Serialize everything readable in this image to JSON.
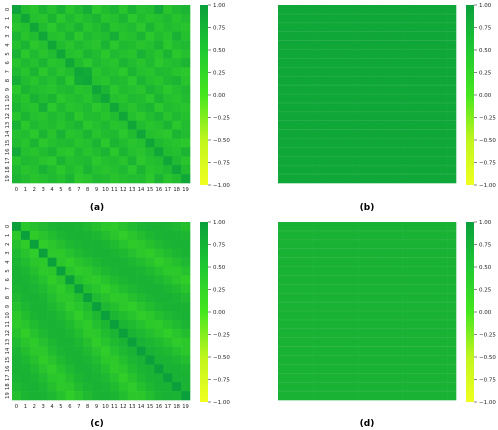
{
  "figure": {
    "panel_labels": [
      "(a)",
      "(b)",
      "(c)",
      "(d)"
    ]
  },
  "chart_data": [
    {
      "type": "heatmap",
      "panel": "(a)",
      "title": "",
      "xlabel": "",
      "ylabel": "",
      "x_ticks": [
        "0",
        "1",
        "2",
        "3",
        "4",
        "5",
        "6",
        "7",
        "8",
        "9",
        "10",
        "11",
        "12",
        "13",
        "14",
        "15",
        "16",
        "17",
        "18",
        "19"
      ],
      "y_ticks": [
        "0",
        "1",
        "2",
        "3",
        "4",
        "5",
        "6",
        "7",
        "8",
        "9",
        "10",
        "11",
        "12",
        "13",
        "14",
        "15",
        "16",
        "17",
        "18",
        "19"
      ],
      "color_range": [
        -1.0,
        1.0
      ],
      "colorbar_ticks": [
        "1.00",
        "0.75",
        "0.50",
        "0.25",
        "0.00",
        "−0.25",
        "−0.50",
        "−0.75",
        "−1.00"
      ],
      "colormap": {
        "low": "#f0ff1e",
        "mid": "#46e61e",
        "high": "#0aa03c"
      },
      "matrix_pattern": "mixed",
      "values": [
        [
          0.95,
          0.6,
          0.5,
          0.7,
          0.55,
          0.75,
          0.5,
          0.65,
          0.8,
          0.45,
          0.6,
          0.7,
          0.5,
          0.75,
          0.55,
          0.6,
          0.85,
          0.5,
          0.65,
          0.7
        ],
        [
          0.6,
          0.9,
          0.55,
          0.5,
          0.7,
          0.45,
          0.65,
          0.5,
          0.6,
          0.7,
          0.5,
          0.55,
          0.7,
          0.45,
          0.6,
          0.5,
          0.55,
          0.65,
          0.5,
          0.6
        ],
        [
          0.5,
          0.55,
          0.9,
          0.6,
          0.45,
          0.65,
          0.55,
          0.7,
          0.5,
          0.6,
          0.75,
          0.5,
          0.55,
          0.65,
          0.45,
          0.7,
          0.5,
          0.6,
          0.55,
          0.5
        ],
        [
          0.7,
          0.5,
          0.6,
          0.9,
          0.55,
          0.5,
          0.7,
          0.45,
          0.65,
          0.55,
          0.6,
          0.8,
          0.5,
          0.55,
          0.7,
          0.45,
          0.6,
          0.5,
          0.75,
          0.55
        ],
        [
          0.55,
          0.7,
          0.45,
          0.55,
          0.9,
          0.6,
          0.5,
          0.65,
          0.55,
          0.5,
          0.7,
          0.45,
          0.65,
          0.6,
          0.5,
          0.55,
          0.7,
          0.45,
          0.6,
          0.65
        ],
        [
          0.75,
          0.45,
          0.65,
          0.5,
          0.6,
          0.9,
          0.55,
          0.5,
          0.7,
          0.6,
          0.45,
          0.65,
          0.55,
          0.5,
          0.75,
          0.6,
          0.5,
          0.7,
          0.45,
          0.55
        ],
        [
          0.5,
          0.65,
          0.55,
          0.7,
          0.5,
          0.55,
          0.9,
          0.6,
          0.45,
          0.65,
          0.55,
          0.5,
          0.7,
          0.6,
          0.5,
          0.65,
          0.45,
          0.55,
          0.6,
          0.7
        ],
        [
          0.65,
          0.5,
          0.7,
          0.45,
          0.65,
          0.5,
          0.6,
          0.9,
          0.85,
          0.5,
          0.6,
          0.55,
          0.45,
          0.7,
          0.55,
          0.5,
          0.65,
          0.6,
          0.5,
          0.45
        ],
        [
          0.8,
          0.6,
          0.5,
          0.65,
          0.55,
          0.7,
          0.45,
          0.85,
          0.9,
          0.55,
          0.5,
          0.65,
          0.6,
          0.45,
          0.7,
          0.55,
          0.5,
          0.65,
          0.7,
          0.5
        ],
        [
          0.45,
          0.7,
          0.6,
          0.55,
          0.5,
          0.6,
          0.65,
          0.5,
          0.55,
          0.9,
          0.7,
          0.45,
          0.6,
          0.55,
          0.5,
          0.7,
          0.6,
          0.45,
          0.55,
          0.65
        ],
        [
          0.6,
          0.5,
          0.75,
          0.6,
          0.7,
          0.45,
          0.55,
          0.6,
          0.5,
          0.7,
          0.9,
          0.55,
          0.5,
          0.65,
          0.6,
          0.45,
          0.7,
          0.55,
          0.5,
          0.6
        ],
        [
          0.7,
          0.55,
          0.5,
          0.8,
          0.45,
          0.65,
          0.5,
          0.55,
          0.65,
          0.45,
          0.55,
          0.9,
          0.6,
          0.5,
          0.65,
          0.7,
          0.45,
          0.6,
          0.55,
          0.5
        ],
        [
          0.5,
          0.7,
          0.55,
          0.5,
          0.65,
          0.55,
          0.7,
          0.45,
          0.6,
          0.6,
          0.5,
          0.6,
          0.9,
          0.55,
          0.45,
          0.6,
          0.7,
          0.5,
          0.65,
          0.55
        ],
        [
          0.75,
          0.45,
          0.65,
          0.55,
          0.6,
          0.5,
          0.6,
          0.7,
          0.45,
          0.55,
          0.65,
          0.5,
          0.55,
          0.9,
          0.6,
          0.5,
          0.55,
          0.7,
          0.45,
          0.6
        ],
        [
          0.55,
          0.6,
          0.45,
          0.7,
          0.5,
          0.75,
          0.5,
          0.55,
          0.7,
          0.5,
          0.6,
          0.65,
          0.45,
          0.6,
          0.9,
          0.55,
          0.5,
          0.45,
          0.7,
          0.6
        ],
        [
          0.6,
          0.5,
          0.7,
          0.45,
          0.55,
          0.6,
          0.65,
          0.5,
          0.55,
          0.7,
          0.45,
          0.7,
          0.6,
          0.5,
          0.55,
          0.9,
          0.65,
          0.55,
          0.5,
          0.45
        ],
        [
          0.85,
          0.55,
          0.5,
          0.6,
          0.7,
          0.5,
          0.45,
          0.65,
          0.5,
          0.6,
          0.7,
          0.45,
          0.7,
          0.55,
          0.5,
          0.65,
          0.9,
          0.6,
          0.55,
          0.7
        ],
        [
          0.5,
          0.65,
          0.6,
          0.5,
          0.45,
          0.7,
          0.55,
          0.6,
          0.65,
          0.45,
          0.55,
          0.6,
          0.5,
          0.7,
          0.45,
          0.55,
          0.6,
          0.9,
          0.65,
          0.5
        ],
        [
          0.65,
          0.5,
          0.55,
          0.75,
          0.6,
          0.45,
          0.6,
          0.5,
          0.7,
          0.55,
          0.5,
          0.55,
          0.65,
          0.45,
          0.7,
          0.5,
          0.55,
          0.65,
          0.9,
          0.6
        ],
        [
          0.7,
          0.6,
          0.5,
          0.55,
          0.65,
          0.55,
          0.7,
          0.45,
          0.5,
          0.65,
          0.6,
          0.5,
          0.55,
          0.6,
          0.6,
          0.45,
          0.7,
          0.5,
          0.6,
          0.9
        ]
      ]
    },
    {
      "type": "heatmap",
      "panel": "(b)",
      "title": "",
      "xlabel": "",
      "ylabel": "",
      "color_range": [
        -1.0,
        1.0
      ],
      "colorbar_ticks": [
        "1.00",
        "0.75",
        "0.50",
        "0.25",
        "0.00",
        "−0.25",
        "−0.50",
        "−0.75",
        "−1.00"
      ],
      "colormap": {
        "low": "#f0ff1e",
        "mid": "#46e61e",
        "high": "#0aa03c"
      },
      "matrix_pattern": "uniform",
      "uniform_value": 0.9
    },
    {
      "type": "heatmap",
      "panel": "(c)",
      "title": "",
      "xlabel": "",
      "ylabel": "",
      "x_ticks": [
        "0",
        "1",
        "2",
        "3",
        "4",
        "5",
        "6",
        "7",
        "8",
        "9",
        "10",
        "11",
        "12",
        "13",
        "14",
        "15",
        "16",
        "17",
        "18",
        "19"
      ],
      "y_ticks": [
        "0",
        "1",
        "2",
        "3",
        "4",
        "5",
        "6",
        "7",
        "8",
        "9",
        "10",
        "11",
        "12",
        "13",
        "14",
        "15",
        "16",
        "17",
        "18",
        "19"
      ],
      "color_range": [
        -1.0,
        1.0
      ],
      "colorbar_ticks": [
        "1.00",
        "0.75",
        "0.50",
        "0.25",
        "0.00",
        "−0.25",
        "−0.50",
        "−0.75",
        "−1.00"
      ],
      "colormap": {
        "low": "#f0ff1e",
        "mid": "#46e61e",
        "high": "#0aa03c"
      },
      "matrix_pattern": "diagonal-dominant",
      "diagonal_value": 1.0,
      "off_diagonal_range": [
        0.35,
        0.75
      ]
    },
    {
      "type": "heatmap",
      "panel": "(d)",
      "title": "",
      "xlabel": "",
      "ylabel": "",
      "color_range": [
        -1.0,
        1.0
      ],
      "colorbar_ticks": [
        "1.00",
        "0.75",
        "0.50",
        "0.25",
        "0.00",
        "−0.25",
        "−0.50",
        "−0.75",
        "−1.00"
      ],
      "colormap": {
        "low": "#f0ff1e",
        "mid": "#46e61e",
        "high": "#0aa03c"
      },
      "matrix_pattern": "uniform",
      "uniform_value": 0.75
    }
  ]
}
